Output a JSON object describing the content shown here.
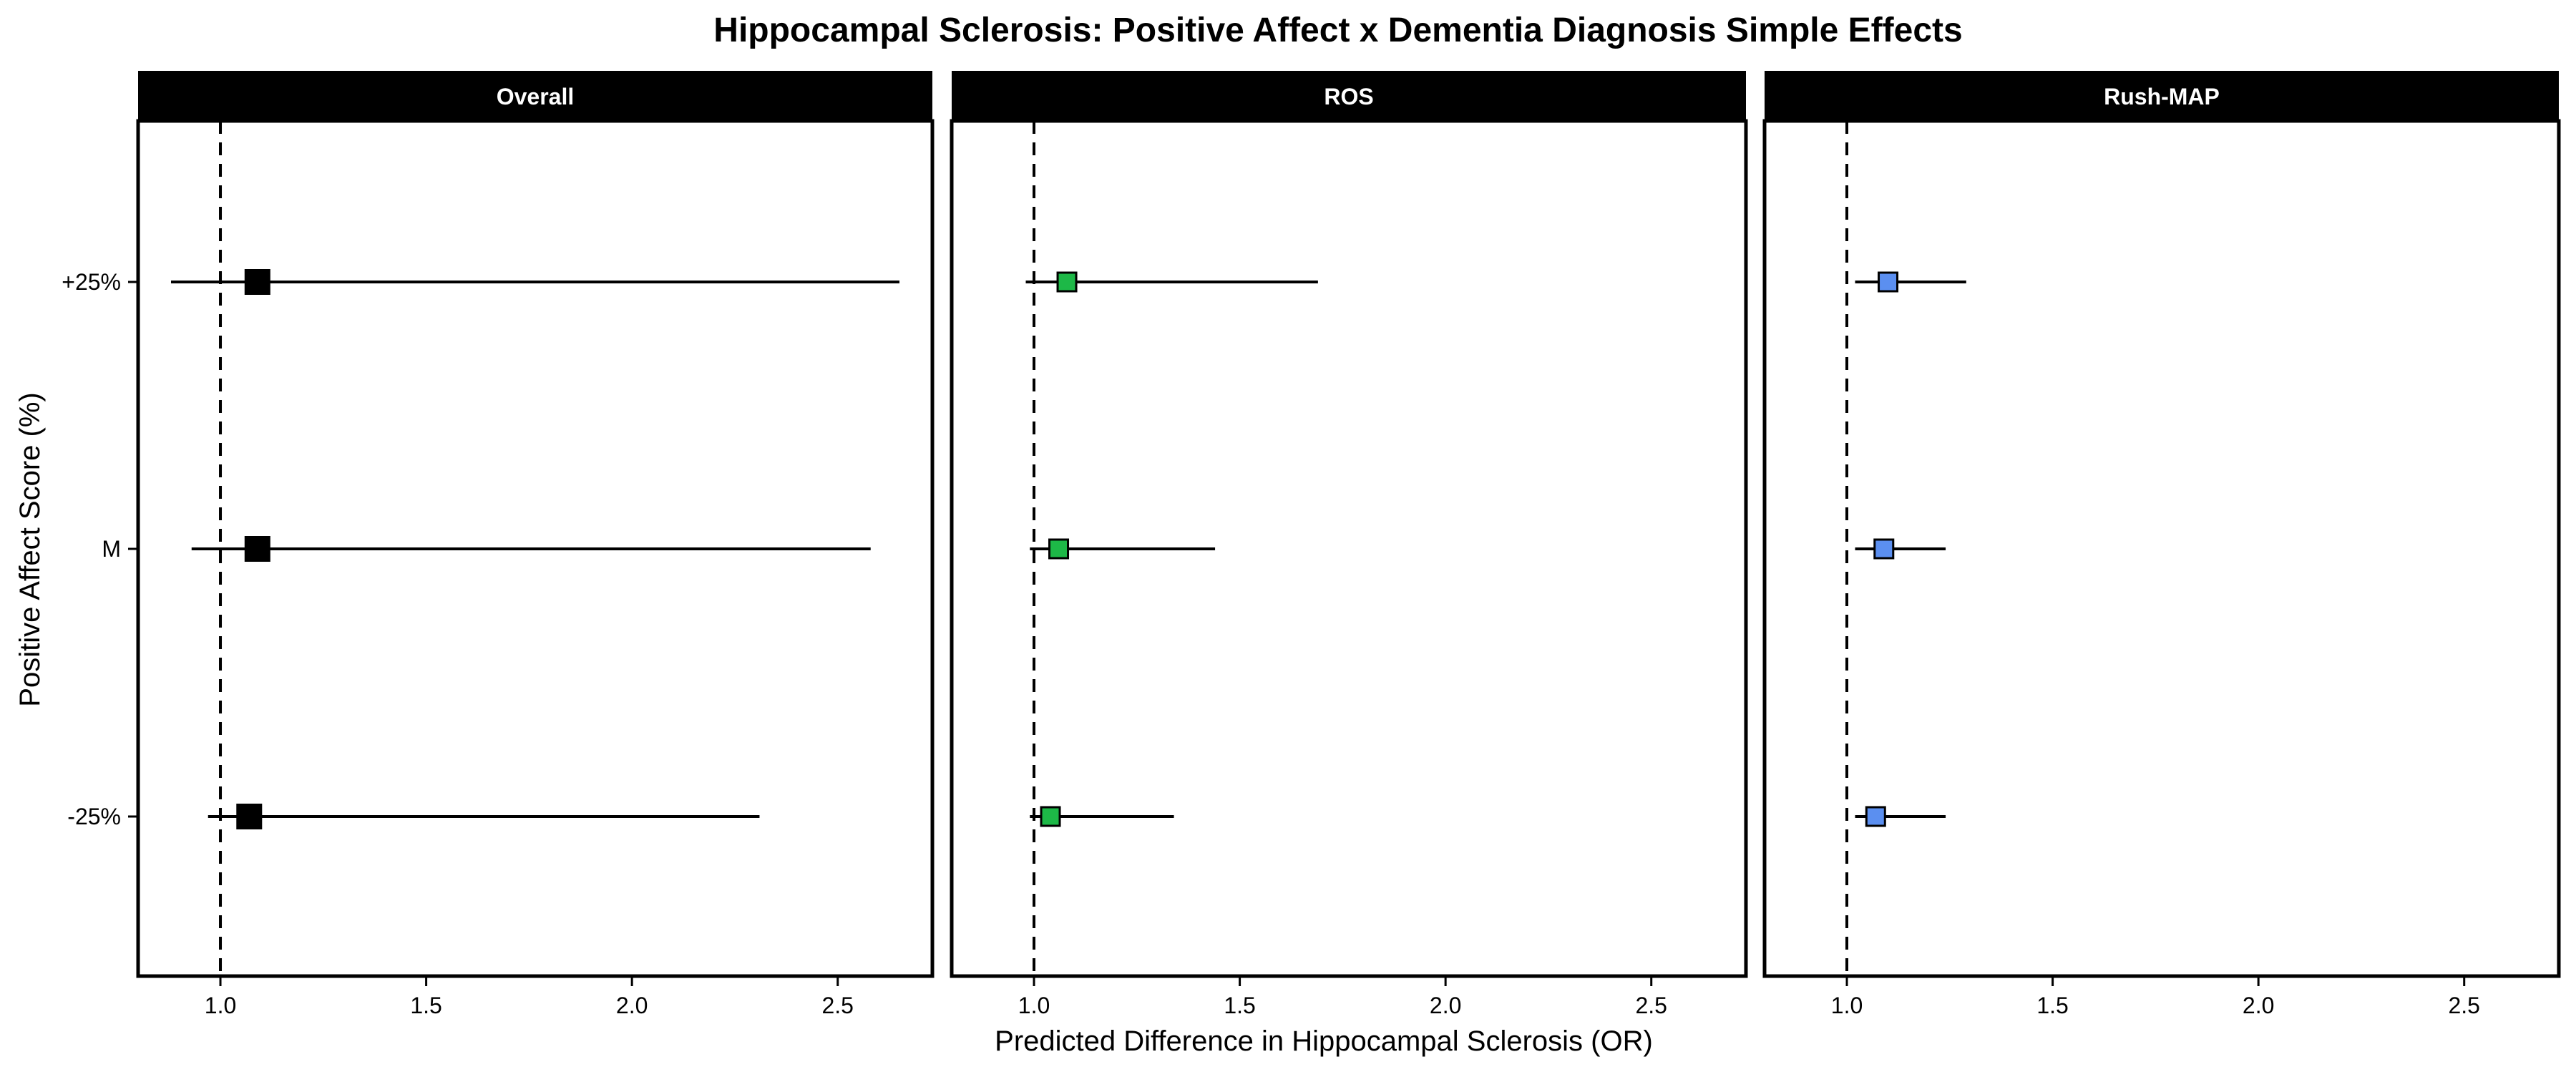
{
  "chart_data": {
    "type": "forest",
    "title": "Hippocampal Sclerosis: Positive Affect x Dementia Diagnosis Simple Effects",
    "xlabel": "Predicted Difference in Hippocampal Sclerosis (OR)",
    "ylabel": "Positive Affect Score (%)",
    "categories": [
      "+25%",
      "M",
      "-25%"
    ],
    "x_ticks": [
      1.0,
      1.5,
      2.0,
      2.5
    ],
    "x_tick_labels": [
      "1.0",
      "1.5",
      "2.0",
      "2.5"
    ],
    "xlim": [
      0.8,
      2.73
    ],
    "reference_line": 1.0,
    "grid": false,
    "panels": [
      {
        "name": "Overall",
        "color": "#000000",
        "points": [
          {
            "category": "+25%",
            "estimate": 1.09,
            "lower": 0.88,
            "upper": 2.65
          },
          {
            "category": "M",
            "estimate": 1.09,
            "lower": 0.93,
            "upper": 2.58
          },
          {
            "category": "-25%",
            "estimate": 1.07,
            "lower": 0.97,
            "upper": 2.31
          }
        ]
      },
      {
        "name": "ROS",
        "color": "#1db847",
        "points": [
          {
            "category": "+25%",
            "estimate": 1.08,
            "lower": 0.98,
            "upper": 1.69
          },
          {
            "category": "M",
            "estimate": 1.06,
            "lower": 0.99,
            "upper": 1.44
          },
          {
            "category": "-25%",
            "estimate": 1.04,
            "lower": 0.99,
            "upper": 1.34
          }
        ]
      },
      {
        "name": "Rush-MAP",
        "color": "#5b8ff0",
        "points": [
          {
            "category": "+25%",
            "estimate": 1.1,
            "lower": 1.02,
            "upper": 1.29
          },
          {
            "category": "M",
            "estimate": 1.09,
            "lower": 1.02,
            "upper": 1.24
          },
          {
            "category": "-25%",
            "estimate": 1.07,
            "lower": 1.02,
            "upper": 1.24
          }
        ]
      }
    ]
  }
}
